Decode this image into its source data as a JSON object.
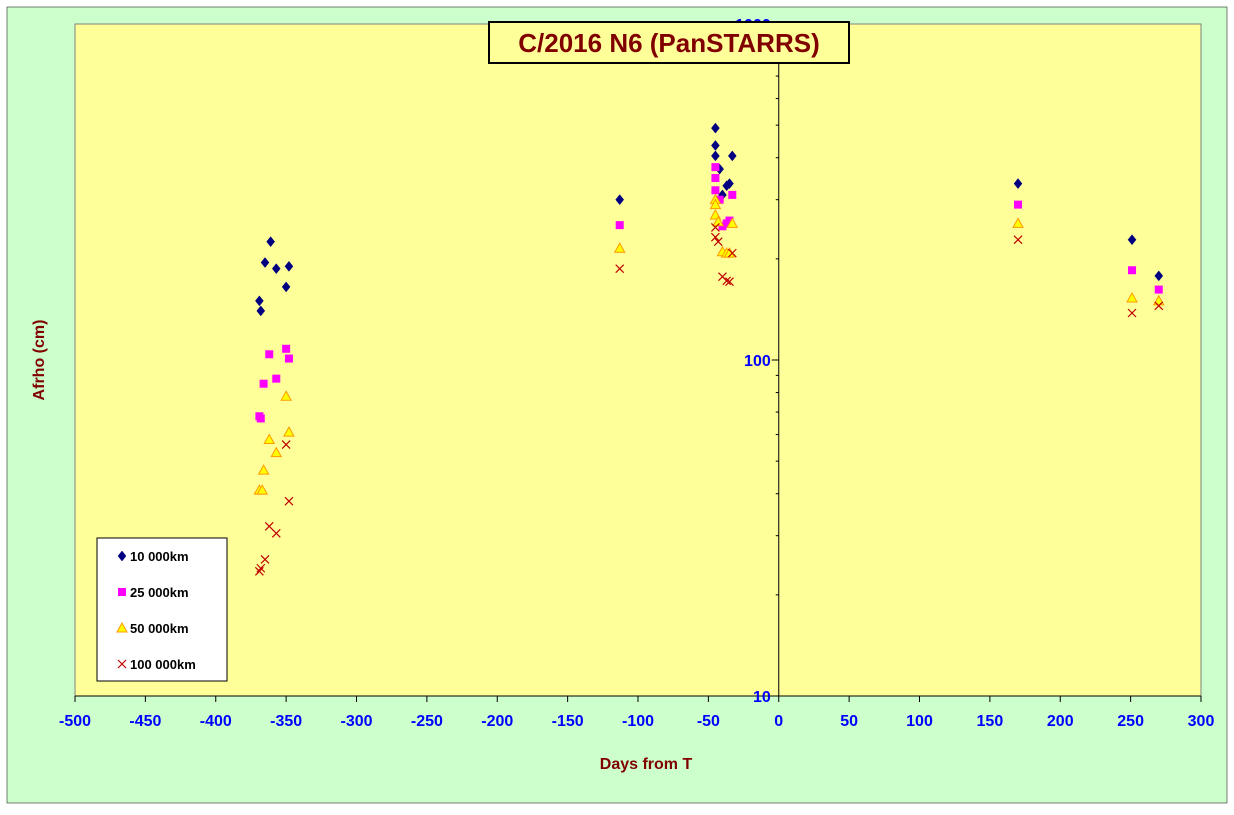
{
  "chart_data": {
    "type": "scatter",
    "title": "C/2016 N6 (PanSTARRS)",
    "xlabel": "Days from T",
    "ylabel": "Afrho (cm)",
    "xlim": [
      -500,
      300
    ],
    "ylim": [
      10,
      1000
    ],
    "yscale": "log",
    "grid": false,
    "legend_position": "bottom-left",
    "x_ticks": [
      "-500",
      "-450",
      "-400",
      "-350",
      "-300",
      "-250",
      "-200",
      "-150",
      "-100",
      "-50",
      "0",
      "50",
      "100",
      "150",
      "200",
      "250",
      "300"
    ],
    "y_ticks": [
      "10",
      "100",
      "1000"
    ],
    "colors": {
      "outer_background": "#ccffcc",
      "plot_background": "#ffff99",
      "title_text": "#800000",
      "axis_label_text": "#800000",
      "tick_label_text": "#0000ff"
    },
    "series": [
      {
        "name": "10 000km",
        "marker": "diamond",
        "color": "#000080",
        "points": [
          [
            -369,
            150
          ],
          [
            -368,
            140
          ],
          [
            -365,
            195
          ],
          [
            -361,
            225
          ],
          [
            -357,
            187
          ],
          [
            -350,
            165
          ],
          [
            -348,
            190
          ],
          [
            -113,
            300
          ],
          [
            -45,
            490
          ],
          [
            -45,
            435
          ],
          [
            -45,
            405
          ],
          [
            -42,
            370
          ],
          [
            -40,
            310
          ],
          [
            -37,
            330
          ],
          [
            -35,
            335
          ],
          [
            -33,
            405
          ],
          [
            170,
            335
          ],
          [
            251,
            228
          ],
          [
            270,
            178
          ]
        ]
      },
      {
        "name": "25 000km",
        "marker": "square",
        "color": "#ff00ff",
        "points": [
          [
            -369,
            68
          ],
          [
            -368,
            67
          ],
          [
            -366,
            85
          ],
          [
            -362,
            104
          ],
          [
            -357,
            88
          ],
          [
            -350,
            108
          ],
          [
            -348,
            101
          ],
          [
            -113,
            252
          ],
          [
            -45,
            375
          ],
          [
            -45,
            348
          ],
          [
            -45,
            320
          ],
          [
            -42,
            300
          ],
          [
            -40,
            250
          ],
          [
            -37,
            255
          ],
          [
            -35,
            260
          ],
          [
            -33,
            310
          ],
          [
            170,
            290
          ],
          [
            251,
            185
          ],
          [
            270,
            162
          ]
        ]
      },
      {
        "name": "50 000km",
        "marker": "triangle",
        "color": "#ff9900",
        "points": [
          [
            -369,
            41
          ],
          [
            -367,
            41
          ],
          [
            -366,
            47
          ],
          [
            -362,
            58
          ],
          [
            -357,
            53
          ],
          [
            -350,
            78
          ],
          [
            -348,
            61
          ],
          [
            -113,
            215
          ],
          [
            -45,
            300
          ],
          [
            -45,
            290
          ],
          [
            -45,
            270
          ],
          [
            -43,
            258
          ],
          [
            -40,
            210
          ],
          [
            -37,
            208
          ],
          [
            -35,
            208
          ],
          [
            -33,
            255
          ],
          [
            170,
            255
          ],
          [
            251,
            153
          ],
          [
            270,
            150
          ]
        ]
      },
      {
        "name": "100 000km",
        "marker": "x",
        "color": "#c00000",
        "points": [
          [
            -369,
            23.5
          ],
          [
            -368,
            24
          ],
          [
            -365,
            25.5
          ],
          [
            -362,
            32
          ],
          [
            -357,
            30.5
          ],
          [
            -350,
            56
          ],
          [
            -348,
            38
          ],
          [
            -113,
            187
          ],
          [
            -45,
            248
          ],
          [
            -45,
            232
          ],
          [
            -43,
            225
          ],
          [
            -40,
            177
          ],
          [
            -37,
            172
          ],
          [
            -35,
            171
          ],
          [
            -33,
            208
          ],
          [
            170,
            228
          ],
          [
            251,
            138
          ],
          [
            270,
            145
          ]
        ]
      }
    ]
  }
}
